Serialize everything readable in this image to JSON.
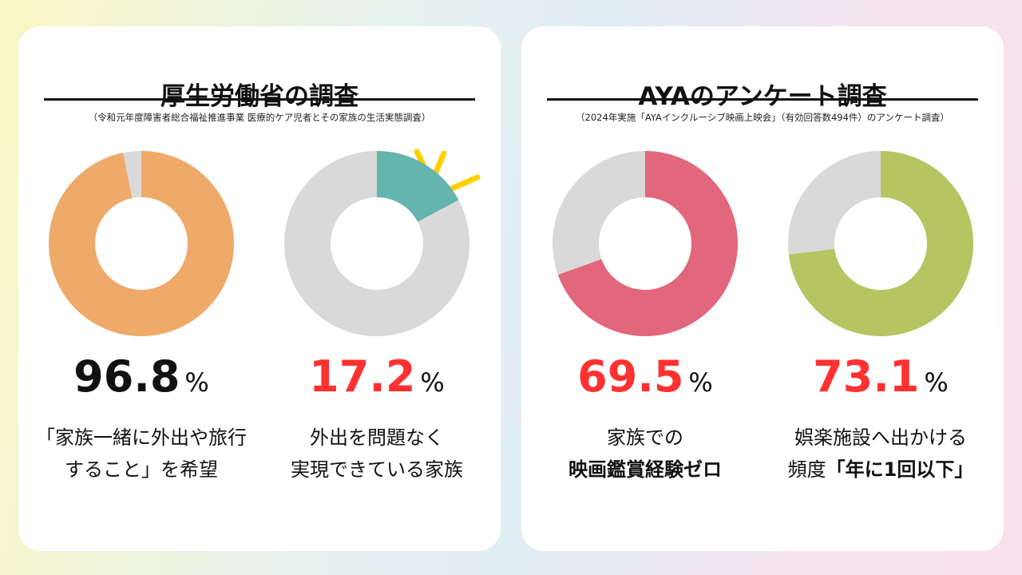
{
  "left": {
    "title": "厚生労働省の調査",
    "subtitle": "（令和元年度障害者総合福祉推進事業 医療的ケア児者とその家族の生活実態調査）"
  },
  "right": {
    "title": "AYAのアンケート調査",
    "subtitle": "（2024年実施「AYAインクルーシブ映画上映会」（有効回答数494件）のアンケート調査）"
  },
  "unit": "%",
  "chart_data": [
    {
      "type": "pie",
      "label": "96.8",
      "value": 96.8,
      "color": "#EFA968",
      "rest_color": "#D9D9D9",
      "caption": [
        "「家族一緒に外出や旅行",
        "すること」を希望"
      ],
      "bold": [
        false,
        false
      ],
      "red": false
    },
    {
      "type": "pie",
      "label": "17.2",
      "value": 17.2,
      "color": "#64B5AE",
      "rest_color": "#D9D9D9",
      "caption": [
        "外出を問題なく",
        "実現できている家族"
      ],
      "bold": [
        false,
        false
      ],
      "red": true
    },
    {
      "type": "pie",
      "label": "69.5",
      "value": 69.5,
      "color": "#E2667C",
      "rest_color": "#D9D9D9",
      "caption": [
        "家族での",
        "映画鑑賞経験ゼロ"
      ],
      "bold": [
        false,
        true
      ],
      "red": true
    },
    {
      "type": "pie",
      "label": "73.1",
      "value": 73.1,
      "color": "#B6C562",
      "rest_color": "#D9D9D9",
      "caption": [
        "娯楽施設へ出かける",
        "頻度",
        "「年に1回以下」"
      ],
      "bold": [
        false,
        false,
        true
      ],
      "red": true
    }
  ]
}
